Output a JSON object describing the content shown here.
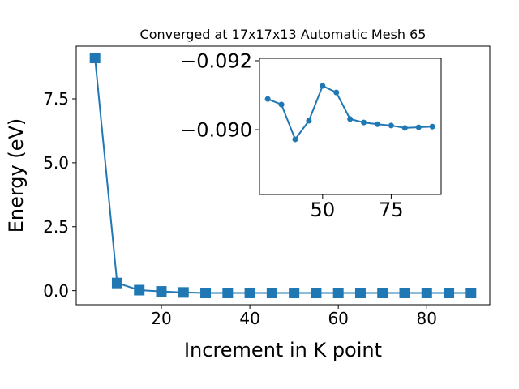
{
  "chart_data": [
    {
      "type": "line",
      "title": "Converged at 17x17x13 Automatic Mesh 65",
      "x_label": "Increment in K point",
      "y_label": "Energy (eV)",
      "x": [
        5,
        10,
        15,
        20,
        25,
        30,
        35,
        40,
        45,
        50,
        55,
        60,
        65,
        70,
        75,
        80,
        85,
        90
      ],
      "series": [
        {
          "color": "#1f77b4",
          "marker": "square",
          "values": [
            9.1,
            0.3,
            0.02,
            -0.03,
            -0.07,
            -0.09089,
            -0.09073,
            -0.08972,
            -0.09026,
            -0.09127,
            -0.09108,
            -0.09031,
            -0.09021,
            -0.09016,
            -0.09012,
            -0.09005,
            -0.09007,
            -0.09009
          ]
        }
      ],
      "xlim": [
        0.75,
        94.25
      ],
      "xticks": [
        20,
        40,
        60,
        80
      ],
      "ylim": [
        -0.55,
        9.56
      ],
      "yticks": [
        {
          "value": 0,
          "label": "0.0"
        },
        2.5,
        {
          "value": 5,
          "label": "5.0"
        },
        7.5
      ],
      "grid": false
    },
    {
      "type": "line",
      "x": [
        30,
        35,
        40,
        45,
        50,
        55,
        60,
        65,
        70,
        75,
        80,
        85,
        90
      ],
      "series": [
        {
          "color": "#1f77b4",
          "marker": "circle",
          "values": [
            -0.09089,
            -0.09073,
            -0.08972,
            -0.09026,
            -0.09127,
            -0.09108,
            -0.09031,
            -0.09021,
            -0.09016,
            -0.09012,
            -0.09005,
            -0.09007,
            -0.09009
          ]
        }
      ],
      "xlim": [
        27,
        93.2
      ],
      "xticks": [
        50,
        75
      ],
      "ylim": [
        -0.08812,
        -0.09207
      ],
      "yticks": [
        {
          "value": -0.092,
          "label": "−0.092"
        },
        {
          "value": -0.09,
          "label": "−0.090"
        }
      ],
      "grid": false
    }
  ]
}
